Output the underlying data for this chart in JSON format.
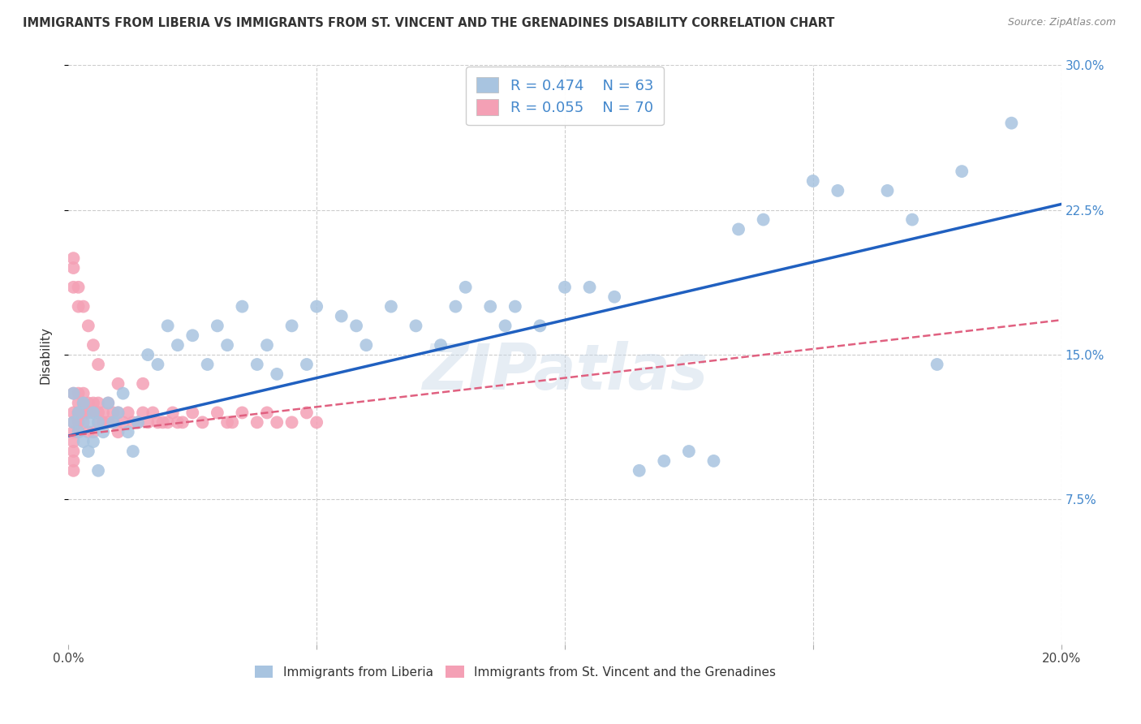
{
  "title": "IMMIGRANTS FROM LIBERIA VS IMMIGRANTS FROM ST. VINCENT AND THE GRENADINES DISABILITY CORRELATION CHART",
  "source": "Source: ZipAtlas.com",
  "ylabel": "Disability",
  "xlim": [
    0.0,
    0.2
  ],
  "ylim": [
    0.0,
    0.3
  ],
  "liberia_R": 0.474,
  "liberia_N": 63,
  "stv_R": 0.055,
  "stv_N": 70,
  "liberia_color": "#a8c4e0",
  "stv_color": "#f4a0b5",
  "liberia_line_color": "#2060c0",
  "stv_line_color": "#e06080",
  "background_color": "#ffffff",
  "grid_color": "#cccccc",
  "watermark": "ZIPatlas",
  "liberia_x": [
    0.001,
    0.001,
    0.002,
    0.002,
    0.003,
    0.003,
    0.004,
    0.004,
    0.005,
    0.005,
    0.006,
    0.006,
    0.007,
    0.008,
    0.009,
    0.01,
    0.011,
    0.012,
    0.013,
    0.014,
    0.016,
    0.018,
    0.02,
    0.022,
    0.025,
    0.028,
    0.03,
    0.032,
    0.035,
    0.038,
    0.04,
    0.042,
    0.045,
    0.048,
    0.05,
    0.055,
    0.058,
    0.06,
    0.065,
    0.07,
    0.075,
    0.078,
    0.08,
    0.085,
    0.088,
    0.09,
    0.095,
    0.1,
    0.105,
    0.11,
    0.115,
    0.12,
    0.125,
    0.13,
    0.135,
    0.14,
    0.15,
    0.155,
    0.165,
    0.17,
    0.18,
    0.175,
    0.19
  ],
  "liberia_y": [
    0.13,
    0.115,
    0.12,
    0.11,
    0.125,
    0.105,
    0.115,
    0.1,
    0.12,
    0.105,
    0.115,
    0.09,
    0.11,
    0.125,
    0.115,
    0.12,
    0.13,
    0.11,
    0.1,
    0.115,
    0.15,
    0.145,
    0.165,
    0.155,
    0.16,
    0.145,
    0.165,
    0.155,
    0.175,
    0.145,
    0.155,
    0.14,
    0.165,
    0.145,
    0.175,
    0.17,
    0.165,
    0.155,
    0.175,
    0.165,
    0.155,
    0.175,
    0.185,
    0.175,
    0.165,
    0.175,
    0.165,
    0.185,
    0.185,
    0.18,
    0.09,
    0.095,
    0.1,
    0.095,
    0.215,
    0.22,
    0.24,
    0.235,
    0.235,
    0.22,
    0.245,
    0.145,
    0.27
  ],
  "stv_x": [
    0.001,
    0.001,
    0.001,
    0.001,
    0.001,
    0.001,
    0.001,
    0.001,
    0.002,
    0.002,
    0.002,
    0.002,
    0.002,
    0.003,
    0.003,
    0.003,
    0.003,
    0.004,
    0.004,
    0.004,
    0.005,
    0.005,
    0.005,
    0.006,
    0.006,
    0.006,
    0.007,
    0.007,
    0.008,
    0.008,
    0.009,
    0.009,
    0.01,
    0.01,
    0.011,
    0.012,
    0.013,
    0.014,
    0.015,
    0.016,
    0.017,
    0.018,
    0.019,
    0.02,
    0.021,
    0.022,
    0.023,
    0.025,
    0.027,
    0.03,
    0.032,
    0.033,
    0.035,
    0.038,
    0.04,
    0.042,
    0.045,
    0.048,
    0.05,
    0.01,
    0.015,
    0.001,
    0.001,
    0.001,
    0.002,
    0.002,
    0.003,
    0.004,
    0.005,
    0.006
  ],
  "stv_y": [
    0.13,
    0.12,
    0.115,
    0.11,
    0.105,
    0.1,
    0.095,
    0.09,
    0.13,
    0.125,
    0.12,
    0.115,
    0.11,
    0.13,
    0.125,
    0.12,
    0.115,
    0.125,
    0.12,
    0.11,
    0.125,
    0.12,
    0.11,
    0.125,
    0.12,
    0.115,
    0.12,
    0.115,
    0.125,
    0.115,
    0.12,
    0.115,
    0.12,
    0.11,
    0.115,
    0.12,
    0.115,
    0.115,
    0.12,
    0.115,
    0.12,
    0.115,
    0.115,
    0.115,
    0.12,
    0.115,
    0.115,
    0.12,
    0.115,
    0.12,
    0.115,
    0.115,
    0.12,
    0.115,
    0.12,
    0.115,
    0.115,
    0.12,
    0.115,
    0.135,
    0.135,
    0.2,
    0.195,
    0.185,
    0.185,
    0.175,
    0.175,
    0.165,
    0.155,
    0.145
  ],
  "blue_line_x0": 0.0,
  "blue_line_y0": 0.108,
  "blue_line_x1": 0.2,
  "blue_line_y1": 0.228,
  "pink_line_x0": 0.0,
  "pink_line_y0": 0.108,
  "pink_line_x1": 0.2,
  "pink_line_y1": 0.168
}
